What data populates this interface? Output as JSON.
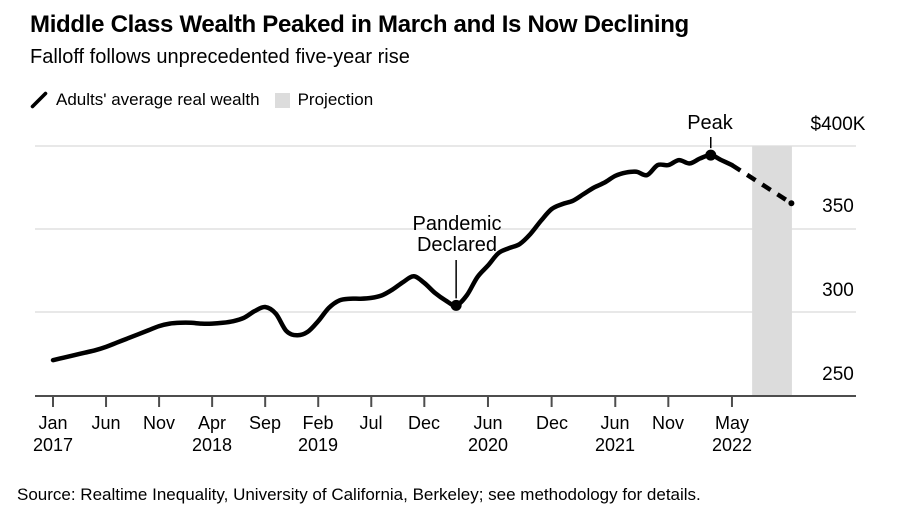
{
  "header": {
    "title": "Middle Class Wealth Peaked in March and Is Now Declining",
    "subtitle": "Falloff follows unprecedented five-year rise"
  },
  "legend": {
    "items": [
      {
        "id": "actual-series",
        "label": "Adults' average real wealth"
      },
      {
        "id": "projection",
        "label": "Projection"
      }
    ]
  },
  "footer": {
    "source": "Source: Realtime Inequality, University of California, Berkeley; see methodology for details."
  },
  "colors": {
    "line": "#000000",
    "projection_band": "#dcdcdc",
    "gridline": "#d9d9d9",
    "axis": "#4d4d4d",
    "text": "#000000"
  },
  "chart_data": {
    "type": "line",
    "title": "Middle Class Wealth Peaked in March and Is Now Declining",
    "subtitle": "Falloff follows unprecedented five-year rise",
    "series_name": "Adults' average real wealth",
    "unit_hint": "thousands of dollars",
    "x_start_month": "2017-01",
    "x_interval": "monthly",
    "values_monthly_thousands": [
      271,
      272.5,
      274,
      275.5,
      277,
      279,
      281.5,
      284,
      286.5,
      289,
      291.5,
      293,
      293.5,
      293.5,
      293,
      293,
      293.5,
      294.5,
      296.5,
      300.5,
      303,
      299,
      288.5,
      286,
      288,
      294.5,
      302.5,
      307,
      308,
      308,
      308.5,
      310,
      313.5,
      318,
      321.5,
      317.5,
      311.5,
      307,
      304,
      310,
      321,
      328,
      335.5,
      338.5,
      341,
      347,
      355,
      362,
      365,
      367,
      371,
      375,
      378,
      382,
      384,
      384.5,
      382.5,
      388.5,
      388.5,
      391.5,
      389.5,
      392.5,
      394.5,
      391.5,
      388.5
    ],
    "projection": {
      "style": "dashed",
      "start_month": "2022-05",
      "start_value": 388.5,
      "end_month": "2022-10",
      "end_value": 365.5
    },
    "y_axis": {
      "side": "right",
      "range": [
        250,
        400
      ],
      "gridlines": true,
      "ticks": [
        {
          "value": 400,
          "label": "$400K"
        },
        {
          "value": 350,
          "label": "350"
        },
        {
          "value": 300,
          "label": "300"
        },
        {
          "value": 250,
          "label": "250"
        }
      ]
    },
    "x_axis": {
      "ticks": [
        {
          "month_index": 0,
          "line1": "Jan",
          "line2": "2017"
        },
        {
          "month_index": 5,
          "line1": "Jun"
        },
        {
          "month_index": 10,
          "line1": "Nov"
        },
        {
          "month_index": 15,
          "line1": "Apr",
          "line2": "2018"
        },
        {
          "month_index": 20,
          "line1": "Sep"
        },
        {
          "month_index": 25,
          "line1": "Feb",
          "line2": "2019"
        },
        {
          "month_index": 30,
          "line1": "Jul"
        },
        {
          "month_index": 35,
          "line1": "Dec"
        },
        {
          "month_index": 41,
          "line1": "Jun",
          "line2": "2020"
        },
        {
          "month_index": 47,
          "line1": "Dec"
        },
        {
          "month_index": 53,
          "line1": "Jun",
          "line2": "2021"
        },
        {
          "month_index": 58,
          "line1": "Nov"
        },
        {
          "month_index": 64,
          "line1": "May",
          "line2": "2022"
        }
      ]
    },
    "annotations": [
      {
        "id": "pandemic-declared",
        "lines": [
          "Pandemic",
          "Declared"
        ],
        "month": "2020-03",
        "month_index": 38,
        "value": 304
      },
      {
        "id": "peak",
        "lines": [
          "Peak"
        ],
        "month": "2022-03",
        "month_index": 62,
        "value": 394.5
      }
    ],
    "legend_position": "top"
  }
}
